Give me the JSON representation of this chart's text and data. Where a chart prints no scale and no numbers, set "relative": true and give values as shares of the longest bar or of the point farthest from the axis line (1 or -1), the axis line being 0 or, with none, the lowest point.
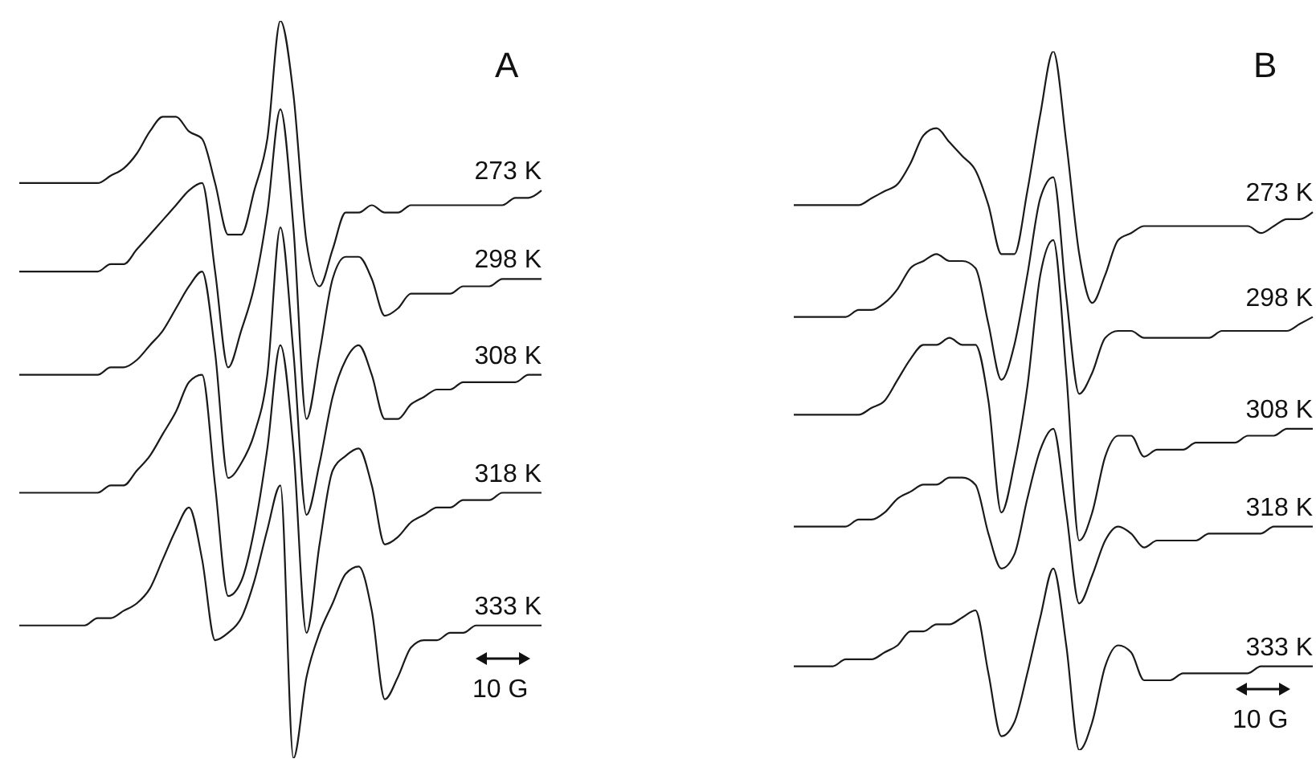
{
  "chart_data": [
    {
      "type": "line",
      "title": "A",
      "relative": true,
      "marker": "none",
      "annotations": [
        "10 G"
      ],
      "categories": [
        null,
        null,
        null,
        null,
        null,
        null,
        null,
        null,
        null,
        null,
        null,
        null,
        null,
        null,
        null,
        null,
        null,
        null,
        null,
        null,
        null,
        null,
        null,
        null,
        null,
        null,
        null,
        null,
        null,
        null,
        null,
        null,
        null,
        null,
        null,
        null,
        null,
        null,
        null,
        null,
        null
      ],
      "series": [
        {
          "name": "273 K",
          "color": "#1a1a1a",
          "values": [
            0.78,
            0.78,
            0.78,
            0.78,
            0.78,
            0.78,
            0.78,
            0.79,
            0.8,
            0.82,
            0.85,
            0.87,
            0.87,
            0.85,
            0.84,
            0.78,
            0.71,
            0.71,
            0.77,
            0.84,
            1.0,
            0.9,
            0.7,
            0.64,
            0.69,
            0.74,
            0.74,
            0.75,
            0.74,
            0.74,
            0.75,
            0.75,
            0.75,
            0.75,
            0.75,
            0.75,
            0.75,
            0.75,
            0.76,
            0.76,
            0.77
          ]
        },
        {
          "name": "298 K",
          "color": "#1a1a1a",
          "values": [
            0.66,
            0.66,
            0.66,
            0.66,
            0.66,
            0.66,
            0.66,
            0.67,
            0.67,
            0.69,
            0.71,
            0.73,
            0.75,
            0.77,
            0.78,
            0.66,
            0.53,
            0.58,
            0.64,
            0.74,
            0.88,
            0.72,
            0.46,
            0.55,
            0.65,
            0.68,
            0.68,
            0.65,
            0.6,
            0.61,
            0.63,
            0.63,
            0.63,
            0.63,
            0.64,
            0.64,
            0.64,
            0.65,
            0.65,
            0.65,
            0.65
          ]
        },
        {
          "name": "308 K",
          "color": "#1a1a1a",
          "values": [
            0.52,
            0.52,
            0.52,
            0.52,
            0.52,
            0.52,
            0.52,
            0.53,
            0.53,
            0.54,
            0.56,
            0.58,
            0.61,
            0.64,
            0.66,
            0.55,
            0.38,
            0.4,
            0.44,
            0.52,
            0.72,
            0.55,
            0.33,
            0.4,
            0.49,
            0.54,
            0.56,
            0.52,
            0.46,
            0.46,
            0.48,
            0.49,
            0.5,
            0.5,
            0.51,
            0.51,
            0.51,
            0.51,
            0.51,
            0.52,
            0.52
          ]
        },
        {
          "name": "318 K",
          "color": "#1a1a1a",
          "values": [
            0.36,
            0.36,
            0.36,
            0.36,
            0.36,
            0.36,
            0.36,
            0.37,
            0.37,
            0.39,
            0.41,
            0.44,
            0.47,
            0.51,
            0.52,
            0.37,
            0.22,
            0.24,
            0.31,
            0.42,
            0.56,
            0.42,
            0.17,
            0.29,
            0.39,
            0.41,
            0.42,
            0.37,
            0.29,
            0.3,
            0.32,
            0.33,
            0.34,
            0.34,
            0.35,
            0.35,
            0.35,
            0.36,
            0.36,
            0.36,
            0.36
          ]
        },
        {
          "name": "333 K",
          "color": "#1a1a1a",
          "values": [
            0.18,
            0.18,
            0.18,
            0.18,
            0.18,
            0.18,
            0.19,
            0.19,
            0.2,
            0.21,
            0.23,
            0.27,
            0.31,
            0.34,
            0.27,
            0.16,
            0.17,
            0.19,
            0.24,
            0.31,
            0.37,
            0,
            0.11,
            0.17,
            0.21,
            0.25,
            0.26,
            0.2,
            0.08,
            0.11,
            0.15,
            0.16,
            0.16,
            0.17,
            0.17,
            0.18,
            0.18,
            0.18,
            0.18,
            0.18,
            0.18
          ]
        }
      ]
    },
    {
      "type": "line",
      "title": "B",
      "relative": true,
      "marker": "none",
      "annotations": [
        "10 G"
      ],
      "categories": [
        null,
        null,
        null,
        null,
        null,
        null,
        null,
        null,
        null,
        null,
        null,
        null,
        null,
        null,
        null,
        null,
        null,
        null,
        null,
        null,
        null,
        null,
        null,
        null,
        null,
        null,
        null,
        null,
        null,
        null,
        null,
        null,
        null,
        null,
        null,
        null,
        null,
        null,
        null,
        null,
        null
      ],
      "series": [
        {
          "name": "273 K",
          "color": "#1a1a1a",
          "values": [
            0.78,
            0.78,
            0.78,
            0.78,
            0.78,
            0.78,
            0.79,
            0.8,
            0.81,
            0.84,
            0.88,
            0.89,
            0.87,
            0.85,
            0.83,
            0.78,
            0.71,
            0.71,
            0.8,
            0.91,
            1.0,
            0.87,
            0.71,
            0.64,
            0.68,
            0.73,
            0.74,
            0.75,
            0.75,
            0.75,
            0.75,
            0.75,
            0.75,
            0.75,
            0.75,
            0.75,
            0.74,
            0.75,
            0.76,
            0.76,
            0.77
          ]
        },
        {
          "name": "298 K",
          "color": "#1a1a1a",
          "values": [
            0.62,
            0.62,
            0.62,
            0.62,
            0.62,
            0.63,
            0.63,
            0.64,
            0.66,
            0.69,
            0.7,
            0.71,
            0.7,
            0.7,
            0.69,
            0.61,
            0.53,
            0.58,
            0.68,
            0.79,
            0.82,
            0.65,
            0.51,
            0.54,
            0.59,
            0.6,
            0.6,
            0.59,
            0.59,
            0.59,
            0.59,
            0.59,
            0.59,
            0.6,
            0.6,
            0.6,
            0.6,
            0.6,
            0.6,
            0.61,
            0.62
          ]
        },
        {
          "name": "308 K",
          "color": "#1a1a1a",
          "values": [
            0.48,
            0.48,
            0.48,
            0.48,
            0.48,
            0.48,
            0.49,
            0.5,
            0.53,
            0.56,
            0.58,
            0.58,
            0.59,
            0.58,
            0.58,
            0.5,
            0.34,
            0.41,
            0.52,
            0.68,
            0.73,
            0.54,
            0.3,
            0.34,
            0.42,
            0.45,
            0.45,
            0.42,
            0.43,
            0.43,
            0.43,
            0.44,
            0.44,
            0.44,
            0.44,
            0.45,
            0.45,
            0.45,
            0.46,
            0.46,
            0.46
          ]
        },
        {
          "name": "318 K",
          "color": "#1a1a1a",
          "values": [
            0.32,
            0.32,
            0.32,
            0.32,
            0.32,
            0.33,
            0.33,
            0.34,
            0.36,
            0.37,
            0.38,
            0.38,
            0.39,
            0.39,
            0.38,
            0.31,
            0.26,
            0.28,
            0.36,
            0.43,
            0.46,
            0.34,
            0.21,
            0.25,
            0.3,
            0.32,
            0.31,
            0.29,
            0.3,
            0.3,
            0.3,
            0.3,
            0.31,
            0.31,
            0.31,
            0.31,
            0.31,
            0.32,
            0.32,
            0.32,
            0.32
          ]
        },
        {
          "name": "333 K",
          "color": "#1a1a1a",
          "values": [
            0.12,
            0.12,
            0.12,
            0.12,
            0.13,
            0.13,
            0.13,
            0.14,
            0.15,
            0.17,
            0.17,
            0.18,
            0.18,
            0.19,
            0.2,
            0.11,
            0.02,
            0.04,
            0.11,
            0.19,
            0.26,
            0.15,
            0,
            0.04,
            0.12,
            0.15,
            0.14,
            0.1,
            0.1,
            0.1,
            0.11,
            0.11,
            0.11,
            0.11,
            0.11,
            0.11,
            0.12,
            0.12,
            0.12,
            0.12,
            0.12
          ]
        }
      ]
    }
  ]
}
